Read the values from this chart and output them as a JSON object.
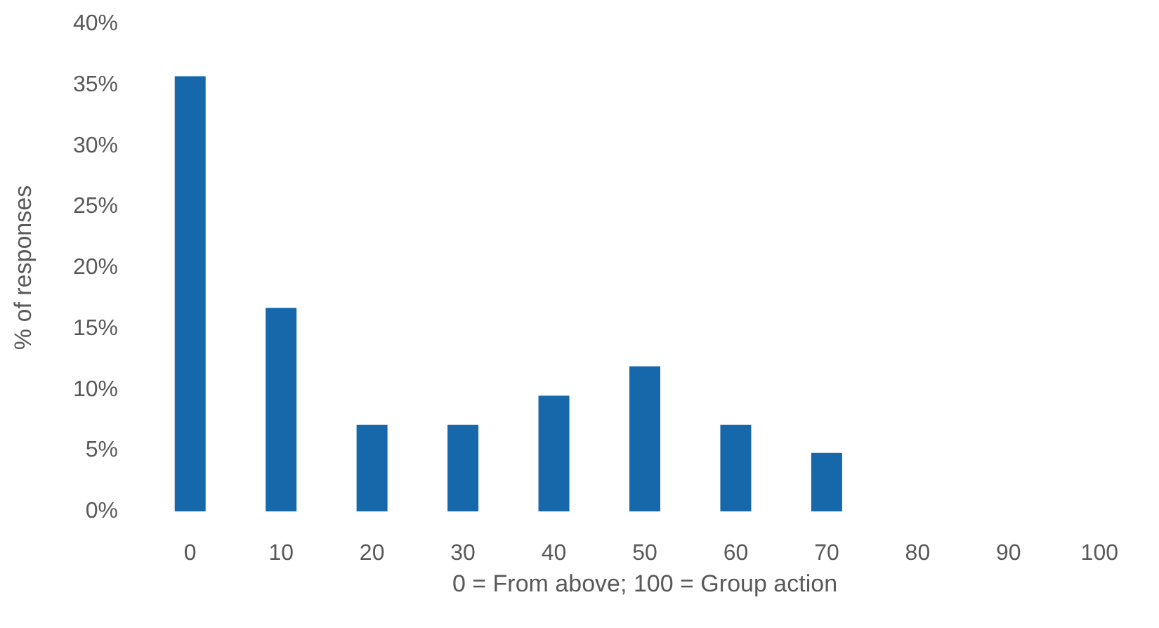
{
  "chart_data": {
    "type": "bar",
    "xlabel": "0 = From above; 100 = Group action",
    "ylabel": "% of responses",
    "categories": [
      "0",
      "10",
      "20",
      "30",
      "40",
      "50",
      "60",
      "70",
      "80",
      "90",
      "100"
    ],
    "values": [
      35.7,
      16.7,
      7.1,
      7.1,
      9.5,
      11.9,
      7.1,
      4.8,
      0,
      0,
      0
    ],
    "color": "#1668aa",
    "ylim": [
      0,
      40
    ],
    "yticks": [
      {
        "value": 0,
        "label": "0%"
      },
      {
        "value": 5,
        "label": "5%"
      },
      {
        "value": 10,
        "label": "10%"
      },
      {
        "value": 15,
        "label": "15%"
      },
      {
        "value": 20,
        "label": "20%"
      },
      {
        "value": 25,
        "label": "25%"
      },
      {
        "value": 30,
        "label": "30%"
      },
      {
        "value": 35,
        "label": "35%"
      },
      {
        "value": 40,
        "label": "40%"
      }
    ]
  }
}
